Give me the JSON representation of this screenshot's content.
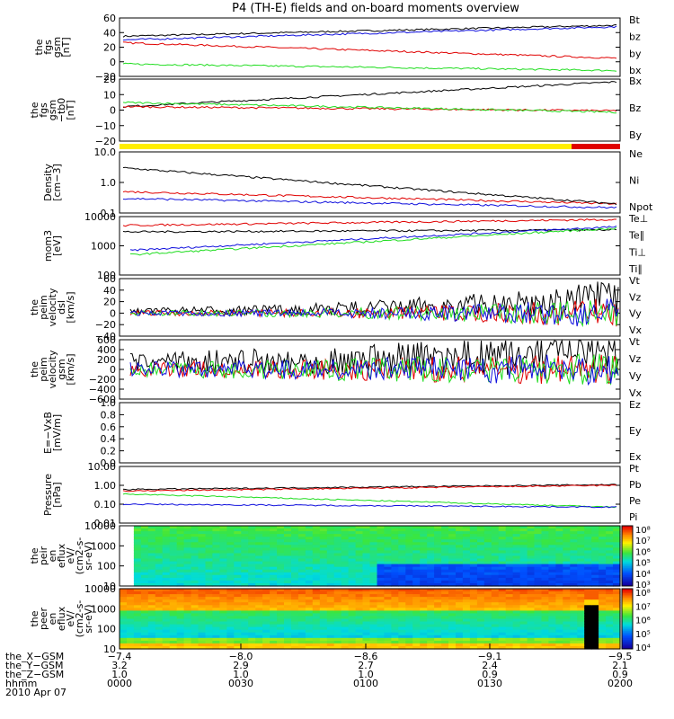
{
  "title": "P4 (TH-E) fields and on-board moments overview",
  "colors": {
    "black": "#000000",
    "red": "#e00000",
    "green": "#20dd20",
    "blue": "#1010dd",
    "yellow": "#ffee00"
  },
  "chart_data": [
    {
      "type": "line",
      "id": "fgs_gsm",
      "ylabel": [
        "the",
        "fgs",
        "gsm",
        "[nT]"
      ],
      "ylim": [
        -20,
        60
      ],
      "ticks": [
        "60",
        "40",
        "20",
        "0",
        "−20"
      ],
      "series": [
        {
          "name": "Bt",
          "color": "black",
          "start": 35,
          "end": 50
        },
        {
          "name": "bz",
          "color": "red",
          "start": 26,
          "end": 5
        },
        {
          "name": "by",
          "color": "green",
          "start": -3,
          "end": -12
        },
        {
          "name": "bx",
          "color": "blue",
          "start": 30,
          "end": 48
        }
      ]
    },
    {
      "type": "line",
      "id": "fgs_gsm_tb0",
      "ylabel": [
        "the",
        "fgs",
        "gsm",
        "−tb0",
        "[nT]"
      ],
      "ylim": [
        -25,
        20
      ],
      "ticks": [
        "20",
        "10",
        "0",
        "−10",
        "−20"
      ],
      "series": [
        {
          "name": "Bx",
          "color": "black",
          "start": 0,
          "end": 18
        },
        {
          "name": "Bz",
          "color": "red",
          "start": 0,
          "end": -3
        },
        {
          "name": "By",
          "color": "green",
          "start": 3,
          "end": -4
        }
      ]
    },
    {
      "type": "line",
      "id": "density",
      "ylabel": [
        "Density",
        "[cm−3]"
      ],
      "scale": "log",
      "ylim": [
        0.1,
        10
      ],
      "ticks": [
        "10.0",
        "1.0",
        "0.1"
      ],
      "series": [
        {
          "name": "Ne",
          "color": "red",
          "start": 0.5,
          "end": 0.2
        },
        {
          "name": "Ni",
          "color": "black",
          "start": 3,
          "end": 0.2
        },
        {
          "name": "Npot",
          "color": "blue",
          "start": 0.3,
          "end": 0.15
        }
      ]
    },
    {
      "type": "line",
      "id": "temperature",
      "ylabel": [
        "mom3",
        "[eV]"
      ],
      "scale": "log",
      "ylim": [
        100,
        10000
      ],
      "ticks": [
        "10000",
        "1000",
        "100"
      ],
      "series": [
        {
          "name": "Te⊥",
          "color": "red",
          "start": 5000,
          "end": 8000
        },
        {
          "name": "Te∥",
          "color": "black",
          "start": 3000,
          "end": 3500
        },
        {
          "name": "Ti⊥",
          "color": "blue",
          "start": 700,
          "end": 4500
        },
        {
          "name": "Ti∥",
          "color": "green",
          "start": 500,
          "end": 4000
        }
      ]
    },
    {
      "type": "line",
      "id": "velocity_dsl",
      "ylabel": [
        "the",
        "peim",
        "velocity",
        "dsl",
        "[km/s]"
      ],
      "ylim": [
        -40,
        60
      ],
      "ticks": [
        "60",
        "40",
        "20",
        "0",
        "−20",
        "−40"
      ],
      "series": [
        {
          "name": "Vt",
          "color": "black"
        },
        {
          "name": "Vz",
          "color": "red"
        },
        {
          "name": "Vy",
          "color": "green"
        },
        {
          "name": "Vx",
          "color": "blue"
        }
      ]
    },
    {
      "type": "line",
      "id": "velocity_gsm",
      "ylabel": [
        "the",
        "peim",
        "velocity",
        "gsm",
        "[km/s]"
      ],
      "ylim": [
        -600,
        600
      ],
      "ticks": [
        "600",
        "400",
        "200",
        "0",
        "−200",
        "−400",
        "−600"
      ],
      "series": [
        {
          "name": "Vt",
          "color": "black"
        },
        {
          "name": "Vz",
          "color": "red"
        },
        {
          "name": "Vy",
          "color": "green"
        },
        {
          "name": "Vx",
          "color": "blue"
        }
      ]
    },
    {
      "type": "line",
      "id": "efield",
      "ylabel": [
        "E=−VxB",
        "[mV/m]"
      ],
      "ylim": [
        0,
        1
      ],
      "ticks": [
        "1.0",
        "0.8",
        "0.6",
        "0.4",
        "0.2",
        "0.0"
      ],
      "series": [
        {
          "name": "Ez",
          "color": "red"
        },
        {
          "name": "Ey",
          "color": "green"
        },
        {
          "name": "Ex",
          "color": "blue"
        }
      ]
    },
    {
      "type": "line",
      "id": "pressure",
      "ylabel": [
        "Pressure",
        "[nPa]"
      ],
      "scale": "log",
      "ylim": [
        0.01,
        10
      ],
      "ticks": [
        "10.00",
        "1.00",
        "0.10",
        "0.01"
      ],
      "series": [
        {
          "name": "Pt",
          "color": "black",
          "start": 0.6,
          "end": 1.1
        },
        {
          "name": "Pb",
          "color": "red",
          "start": 0.5,
          "end": 1.0
        },
        {
          "name": "Pe",
          "color": "green",
          "start": 0.35,
          "end": 0.07
        },
        {
          "name": "Pi",
          "color": "blue",
          "start": 0.1,
          "end": 0.07
        }
      ]
    },
    {
      "type": "heatmap",
      "id": "peir_eflux",
      "ylabel": [
        "the",
        "peir",
        "en",
        "eflux",
        "eV/",
        "(cm2-s-",
        "sr-eV)"
      ],
      "scale": "log",
      "ylim": [
        10,
        20000
      ],
      "ticks": [
        "10000",
        "1000",
        "100",
        "10"
      ],
      "colorbar": [
        "10⁸",
        "10⁷",
        "10⁶",
        "10⁵",
        "10⁴",
        "10³"
      ]
    },
    {
      "type": "heatmap",
      "id": "peer_eflux",
      "ylabel": [
        "the",
        "peer",
        "en",
        "eflux",
        "eV/",
        "(cm2-s-",
        "sr-eV)"
      ],
      "scale": "log",
      "ylim": [
        10,
        20000
      ],
      "ticks": [
        "10000",
        "1000",
        "100",
        "10"
      ],
      "colorbar": [
        "10⁸",
        "10⁷",
        "10⁶",
        "10⁵",
        "10⁴"
      ]
    }
  ],
  "x_axis": {
    "rows": [
      {
        "label": "the_X−GSM",
        "values": [
          "−7.4",
          "−8.0",
          "−8.6",
          "−9.1",
          "−9.5"
        ]
      },
      {
        "label": "the_Y−GSM",
        "values": [
          "3.2",
          "2.9",
          "2.7",
          "2.4",
          "2.1"
        ]
      },
      {
        "label": "the_Z−GSM",
        "values": [
          "1.0",
          "1.0",
          "1.0",
          "0.9",
          "0.9"
        ]
      },
      {
        "label": "hhmm",
        "values": [
          "0000",
          "0030",
          "0100",
          "0130",
          "0200"
        ]
      }
    ],
    "date": "2010 Apr 07"
  }
}
